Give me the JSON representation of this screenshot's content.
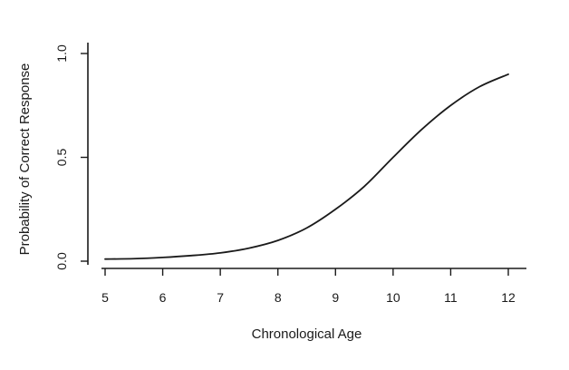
{
  "chart_data": {
    "type": "line",
    "title": "",
    "xlabel": "Chronological Age",
    "ylabel": "Probability of Correct Response",
    "xlim": [
      5,
      12
    ],
    "ylim": [
      0,
      1
    ],
    "xticks": [
      5,
      6,
      7,
      8,
      9,
      10,
      11,
      12
    ],
    "xtick_labels": [
      "5",
      "6",
      "7",
      "8",
      "9",
      "10",
      "11",
      "12"
    ],
    "yticks": [
      0,
      0.5,
      1
    ],
    "ytick_labels": [
      "0.0",
      "0.5",
      "1.0"
    ],
    "grid": false,
    "legend": "none",
    "line_color": "#1a1a1a",
    "series": [
      {
        "x": [
          5,
          5.5,
          6,
          6.5,
          7,
          7.5,
          8,
          8.5,
          9,
          9.5,
          10,
          10.5,
          11,
          11.5,
          12
        ],
        "values": [
          0.01,
          0.012,
          0.018,
          0.027,
          0.04,
          0.063,
          0.1,
          0.16,
          0.25,
          0.36,
          0.5,
          0.635,
          0.75,
          0.84,
          0.9
        ]
      }
    ]
  }
}
